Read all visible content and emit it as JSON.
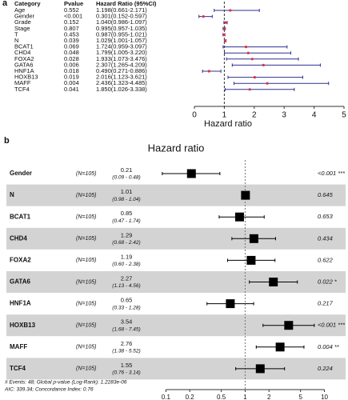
{
  "chart_data": [
    {
      "type": "forest",
      "label": "a",
      "headers": [
        "Category",
        "Pvalue",
        "Hazard Ratio (95%CI)"
      ],
      "categories": [
        "Age",
        "Gender",
        "Grade",
        "Stage",
        "T",
        "N",
        "BCAT1",
        "CHD4",
        "FOXA2",
        "GATA6",
        "HNF1A",
        "HOXB13",
        "MAFF",
        "TCF4"
      ],
      "pvalues": [
        "0.552",
        "<0.001",
        "0.152",
        "0.807",
        "0.453",
        "0.039",
        "0.069",
        "0.048",
        "0.028",
        "0.006",
        "0.018",
        "0.019",
        "0.004",
        "0.041"
      ],
      "value_labels": [
        "1.198(0.661-2.171)",
        "0.301(0.152-0.597)",
        "1.040(0.986-1.097)",
        "0.995(0.957-1.035)",
        "0.987(0.955-1.021)",
        "1.029(1.001-1.057)",
        "1.724(0.959-3.097)",
        "1.799(1.005-3.220)",
        "1.933(1.073-3.476)",
        "2.307(1.265-4.209)",
        "0.490(0.271-0.886)",
        "2.016(1.123-3.621)",
        "2.436(1.323-4.485)",
        "1.850(1.026-3.338)"
      ],
      "values": [
        1.198,
        0.301,
        1.04,
        0.995,
        0.987,
        1.029,
        1.724,
        1.799,
        1.933,
        2.307,
        0.49,
        2.016,
        2.436,
        1.85
      ],
      "lower": [
        0.661,
        0.152,
        0.986,
        0.957,
        0.955,
        1.001,
        0.959,
        1.005,
        1.073,
        1.265,
        0.271,
        1.123,
        1.323,
        1.026
      ],
      "upper": [
        2.171,
        0.597,
        1.097,
        1.035,
        1.021,
        1.057,
        3.097,
        3.22,
        3.476,
        4.209,
        0.886,
        3.621,
        4.485,
        3.338
      ],
      "xlim": [
        0,
        5
      ],
      "xticks": [
        0,
        1,
        2,
        3,
        4,
        5
      ],
      "xlabel": "Hazard ratio",
      "reference": 1,
      "log_scale": false,
      "color": "#2e3192",
      "point_color": "#e0303a"
    },
    {
      "type": "forest",
      "label": "b",
      "title": "Hazard ratio",
      "categories": [
        "Gender",
        "N",
        "BCAT1",
        "CHD4",
        "FOXA2",
        "GATA6",
        "HNF1A",
        "HOXB13",
        "MAFF",
        "TCF4"
      ],
      "n_labels": [
        "(N=105)",
        "(N=105)",
        "(N=105)",
        "(N=105)",
        "(N=105)",
        "(N=105)",
        "(N=105)",
        "(N=105)",
        "(N=105)",
        "(N=105)"
      ],
      "values": [
        0.21,
        1.01,
        0.85,
        1.29,
        1.19,
        2.27,
        0.65,
        3.54,
        2.76,
        1.55
      ],
      "ci_labels": [
        "(0.09 - 0.48)",
        "(0.98 - 1.04)",
        "(0.47 - 1.74)",
        "(0.68 - 2.42)",
        "(0.60 - 2.38)",
        "(1.13 - 4.56)",
        "(0.33 - 1.28)",
        "(1.68 - 7.45)",
        "(1.38 - 5.52)",
        "(0.76 - 3.14)"
      ],
      "lower": [
        0.09,
        0.98,
        0.47,
        0.68,
        0.6,
        1.13,
        0.33,
        1.68,
        1.38,
        0.76
      ],
      "upper": [
        0.48,
        1.04,
        1.74,
        2.42,
        2.38,
        4.56,
        1.28,
        7.45,
        5.52,
        3.14
      ],
      "pvalue_labels": [
        "<0.001 ***",
        "0.645",
        "0.653",
        "0.434",
        "0.622",
        "0.022 *",
        "0.217",
        "<0.001 ***",
        "0.004 **",
        "0.224"
      ],
      "xlim": [
        0.07,
        14
      ],
      "xticks": [
        0.1,
        0.2,
        0.5,
        1,
        2,
        5,
        10
      ],
      "reference": 1,
      "log_scale": true,
      "color": "#000000",
      "band_color": "#d3d3d3",
      "footnotes": [
        "# Events: 48; Global p-value (Log-Rank): 1.2283e-06",
        "AIC: 339.34; Concordance Index: 0.76"
      ]
    }
  ]
}
